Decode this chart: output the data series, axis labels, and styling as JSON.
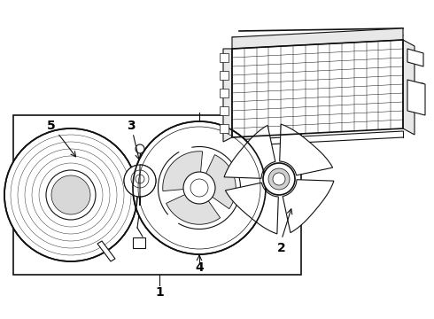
{
  "background_color": "#ffffff",
  "line_color": "#111111",
  "label_color": "#000000",
  "fig_width": 4.9,
  "fig_height": 3.6,
  "dpi": 100,
  "label_fontsize": 10,
  "label_fontweight": "bold"
}
